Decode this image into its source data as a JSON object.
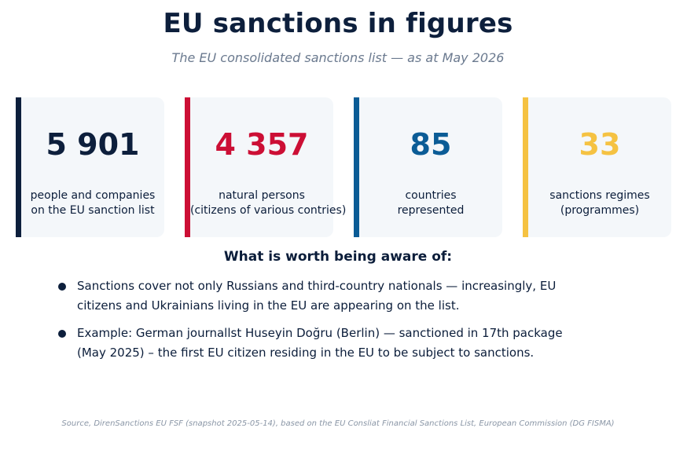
{
  "header": {
    "title": "EU sanctions in figures",
    "subtitle": "The EU consolidated sanctions list — as at May 2026"
  },
  "stats": [
    {
      "value": "5 901",
      "label_lines": [
        "people and companies",
        "on the EU sanction list"
      ],
      "color": "#0d1f3c"
    },
    {
      "value": "4 357",
      "label_lines": [
        "natural persons",
        "(citizens of various contries)"
      ],
      "color": "#cc0f35"
    },
    {
      "value": "85",
      "label_lines": [
        "countries",
        "represented"
      ],
      "color": "#0b5c96"
    },
    {
      "value": "33",
      "label_lines": [
        "sanctions regimes",
        "(programmes)"
      ],
      "color": "#f5c242"
    }
  ],
  "awareness": {
    "heading": "What is worth being aware of:",
    "items": [
      {
        "lines": [
          "Sanctions cover not only Russians and third-country nationals — increasingly, EU",
          "citizens and Ukrainians living in the EU are appearing on the list."
        ]
      },
      {
        "lines": [
          "Example: German journallst Huseyin Doğru (Berlin) — sanctioned in  17th package",
          "(May 2025) – the first EU citizen residing in the EU to be subject to sanctions."
        ]
      }
    ]
  },
  "footer": {
    "source": "Source, DirenSanctions EU FSF (snapshot 2025-05-14), based on the EU Consliat Financial Sanctions List, European Commission (DG FISMA)"
  }
}
